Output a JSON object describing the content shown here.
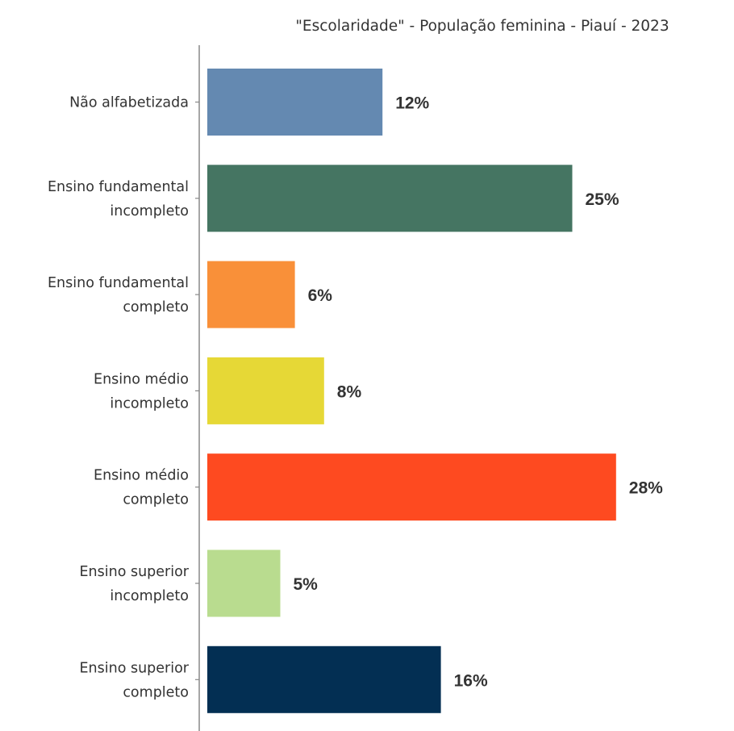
{
  "chart_data": {
    "type": "bar",
    "orientation": "horizontal",
    "title": "\"Escolaridade\" - População feminina - Piauí - 2023",
    "xlabel": "",
    "ylabel": "",
    "xlim": [
      0,
      29
    ],
    "grid": false,
    "legend": "none",
    "categories": [
      [
        "Não alfabetizada"
      ],
      [
        "Ensino fundamental",
        "incompleto"
      ],
      [
        "Ensino fundamental",
        "completo"
      ],
      [
        "Ensino médio",
        "incompleto"
      ],
      [
        "Ensino médio",
        "completo"
      ],
      [
        "Ensino superior",
        "incompleto"
      ],
      [
        "Ensino superior",
        "completo"
      ]
    ],
    "values": [
      12,
      25,
      6,
      8,
      28,
      5,
      16
    ],
    "value_labels": [
      "12%",
      "25%",
      "6%",
      "8%",
      "28%",
      "5%",
      "16%"
    ],
    "colors": [
      "#6489b1",
      "#457562",
      "#f99039",
      "#e6d836",
      "#fe4a20",
      "#b9dc8f",
      "#032f53"
    ]
  }
}
